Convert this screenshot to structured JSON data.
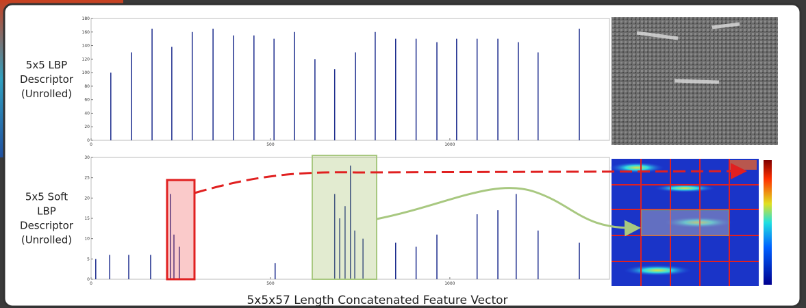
{
  "chart_data": [
    {
      "type": "stem",
      "ylabel": [
        "5x5 LBP",
        "Descriptor",
        "(Unrolled)"
      ],
      "color": "#1a2a8c",
      "x": [
        55,
        113,
        170,
        225,
        282,
        340,
        397,
        454,
        510,
        567,
        624,
        679,
        737,
        792,
        849,
        906,
        964,
        1019,
        1076,
        1134,
        1191,
        1246,
        1361
      ],
      "values": [
        100,
        130,
        165,
        138,
        160,
        165,
        155,
        155,
        150,
        160,
        120,
        105,
        130,
        160,
        150,
        150,
        145,
        150,
        150,
        150,
        145,
        130,
        165
      ],
      "xlim": [
        0,
        1445
      ],
      "xticks": [
        0,
        500,
        1000
      ],
      "ylim": [
        0,
        180
      ],
      "yticks": [
        0,
        20,
        40,
        60,
        80,
        100,
        120,
        140,
        160,
        180
      ]
    },
    {
      "type": "stem",
      "ylabel": [
        "5x5 Soft",
        "LBP",
        "Descriptor",
        "(Unrolled)"
      ],
      "color": "#1a2a8c",
      "x": [
        13,
        52,
        105,
        166,
        221,
        231,
        246,
        513,
        679,
        693,
        708,
        723,
        735,
        758,
        849,
        906,
        964,
        1076,
        1134,
        1185,
        1246,
        1361
      ],
      "values": [
        5,
        6,
        6,
        6,
        21,
        11,
        8,
        4,
        21,
        15,
        18,
        28,
        12,
        10,
        9,
        8,
        11,
        16,
        17,
        21,
        12,
        9
      ],
      "xlim": [
        0,
        1445
      ],
      "xticks": [
        0,
        500,
        1000
      ],
      "ylim": [
        0,
        30
      ],
      "yticks": [
        0,
        5,
        10,
        15,
        20,
        25,
        30
      ]
    }
  ],
  "caption": "5x5x57 Length Concatenated Feature Vector"
}
